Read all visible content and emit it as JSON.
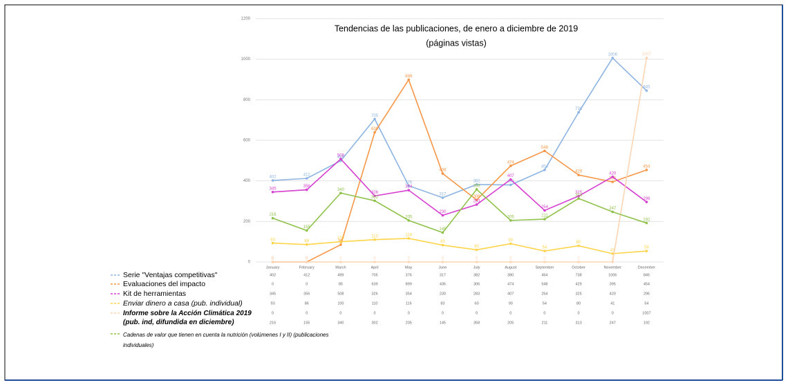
{
  "chart_data": {
    "type": "line",
    "title": "Tendencias de las publicaciones, de enero a diciembre de 2019",
    "subtitle": "(páginas vistas)",
    "categories": [
      "January",
      "February",
      "March",
      "April",
      "May",
      "June",
      "July",
      "August",
      "September",
      "October",
      "November",
      "December"
    ],
    "ylim": [
      0,
      1200
    ],
    "yticks": [
      0,
      200,
      400,
      600,
      800,
      1000,
      1200
    ],
    "grid": true,
    "series": [
      {
        "name": "Serie \"Ventajas competitivas\"",
        "color": "#8db4e2",
        "values": [
          402,
          412,
          499,
          705,
          376,
          317,
          382,
          380,
          454,
          738,
          1006,
          845
        ]
      },
      {
        "name": "Evaluaciones del impacto",
        "color": "#f79646",
        "values": [
          0,
          0,
          85,
          639,
          899,
          436,
          306,
          474,
          548,
          429,
          395,
          454
        ]
      },
      {
        "name": "Kit de herramientas",
        "color": "#d63fd0",
        "values": [
          345,
          356,
          508,
          326,
          354,
          230,
          283,
          407,
          254,
          325,
          420,
          296
        ]
      },
      {
        "name": "Enviar dinero a casa (pub. individual)",
        "color": "#ffd44a",
        "values": [
          93,
          86,
          100,
          110,
          116,
          83,
          60,
          90,
          54,
          80,
          41,
          54
        ]
      },
      {
        "name": "Informe sobre la Acción Climática 2019 (pub. ind, difundida en diciembre)",
        "color": "#fcd5b4",
        "values": [
          0,
          0,
          0,
          0,
          0,
          0,
          0,
          0,
          0,
          0,
          0,
          1007
        ]
      },
      {
        "name": "Cadenas de valor que tienen en cuenta la nutrición (volúmenes I y II) (publicaciones individuales)",
        "color": "#8fc24a",
        "values": [
          216,
          155,
          340,
          302,
          205,
          145,
          358,
          205,
          211,
          313,
          247,
          192
        ]
      }
    ]
  }
}
